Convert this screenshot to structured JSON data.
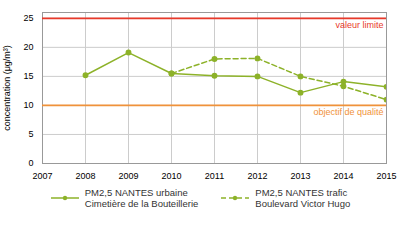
{
  "chart_data": {
    "type": "line",
    "x": [
      2008,
      2009,
      2010,
      2011,
      2012,
      2013,
      2014,
      2015
    ],
    "series": [
      {
        "name": "PM2,5 NANTES urbaine\nCimetière de la Bouteillerie",
        "color": "#8db229",
        "line_style": "solid",
        "marker": "circle",
        "values": [
          15.2,
          19.1,
          15.5,
          15.1,
          15.0,
          12.2,
          14.1,
          13.2
        ]
      },
      {
        "name": "PM2,5 NANTES trafic\nBoulevard Victor Hugo",
        "color": "#8db229",
        "line_style": "dashed",
        "marker": "circle",
        "values": [
          null,
          null,
          15.5,
          18.0,
          18.1,
          15.0,
          13.3,
          11.0
        ]
      }
    ],
    "annotations": [
      {
        "type": "hline",
        "y": 25,
        "label": "valeur limite",
        "color": "#e8392a"
      },
      {
        "type": "hline",
        "y": 10,
        "label": "objectif de qualité",
        "color": "#f0923a"
      }
    ],
    "xlim": [
      2007,
      2015
    ],
    "xticks": [
      2007,
      2008,
      2009,
      2010,
      2011,
      2012,
      2013,
      2014,
      2015
    ],
    "ylim": [
      0,
      26
    ],
    "yticks": [
      0,
      5,
      10,
      15,
      20,
      25
    ],
    "ylabel": "concentration (μg/m³)",
    "grid": true,
    "legend": "bottom"
  }
}
